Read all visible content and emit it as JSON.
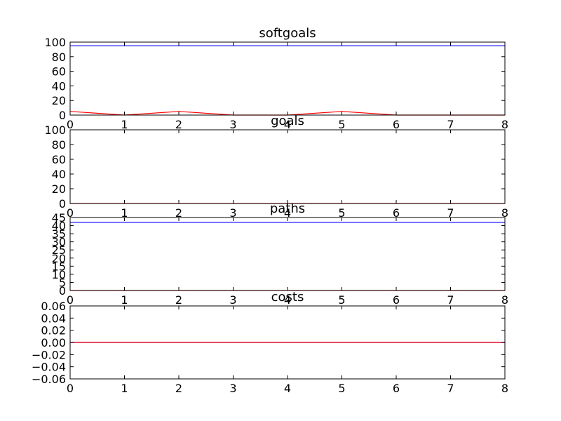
{
  "chart_data": [
    {
      "type": "line",
      "title": "softgoals",
      "xlim": [
        0,
        8
      ],
      "ylim": [
        0,
        100
      ],
      "xticks": [
        "0",
        "1",
        "2",
        "3",
        "4",
        "5",
        "6",
        "7",
        "8"
      ],
      "yticks": [
        "0",
        "20",
        "40",
        "60",
        "80",
        "100"
      ],
      "series": [
        {
          "color": "#0000ff",
          "x": [
            0,
            1,
            2,
            3,
            4,
            5,
            6,
            7,
            8
          ],
          "y": [
            95,
            95,
            95,
            95,
            95,
            95,
            95,
            95,
            95
          ]
        },
        {
          "color": "#ff0000",
          "x": [
            0,
            1,
            2,
            3,
            4,
            5,
            6,
            7,
            8
          ],
          "y": [
            5,
            0,
            5,
            0,
            0,
            5,
            0,
            0,
            0
          ]
        }
      ]
    },
    {
      "type": "line",
      "title": "goals",
      "xlim": [
        0,
        8
      ],
      "ylim": [
        0,
        100
      ],
      "xticks": [
        "0",
        "1",
        "2",
        "3",
        "4",
        "5",
        "6",
        "7",
        "8"
      ],
      "yticks": [
        "0",
        "20",
        "40",
        "60",
        "80",
        "100"
      ],
      "series": [
        {
          "color": "#ff0000",
          "x": [
            0,
            1,
            2,
            3,
            4,
            5,
            6,
            7,
            8
          ],
          "y": [
            0,
            0,
            0,
            0,
            0,
            0,
            0,
            0,
            0
          ]
        }
      ]
    },
    {
      "type": "line",
      "title": "paths",
      "xlim": [
        0,
        8
      ],
      "ylim": [
        0,
        45
      ],
      "xticks": [
        "0",
        "1",
        "2",
        "3",
        "4",
        "5",
        "6",
        "7",
        "8"
      ],
      "yticks": [
        "0",
        "5",
        "10",
        "15",
        "20",
        "25",
        "30",
        "35",
        "40",
        "45"
      ],
      "series": [
        {
          "color": "#0000ff",
          "x": [
            0,
            1,
            2,
            3,
            4,
            5,
            6,
            7,
            8
          ],
          "y": [
            42,
            42,
            42,
            42,
            42,
            42,
            42,
            42,
            42
          ]
        },
        {
          "color": "#ff0000",
          "x": [
            0,
            1,
            2,
            3,
            4,
            5,
            6,
            7,
            8
          ],
          "y": [
            0,
            0,
            0,
            0,
            0,
            0,
            0,
            0,
            0
          ]
        }
      ]
    },
    {
      "type": "line",
      "title": "costs",
      "xlim": [
        0,
        8
      ],
      "ylim": [
        -0.06,
        0.06
      ],
      "xticks": [
        "0",
        "1",
        "2",
        "3",
        "4",
        "5",
        "6",
        "7",
        "8"
      ],
      "yticks": [
        "−0.06",
        "−0.04",
        "−0.02",
        "0.00",
        "0.02",
        "0.04",
        "0.06"
      ],
      "series": [
        {
          "color": "#0000ff",
          "x": [
            0,
            1,
            2,
            3,
            4,
            5,
            6,
            7,
            8
          ],
          "y": [
            0,
            0,
            0,
            0,
            0,
            0,
            0,
            0,
            0
          ]
        },
        {
          "color": "#ff0000",
          "x": [
            0,
            1,
            2,
            3,
            4,
            5,
            6,
            7,
            8
          ],
          "y": [
            0,
            0,
            0,
            0,
            0,
            0,
            0,
            0,
            0
          ]
        }
      ]
    }
  ]
}
